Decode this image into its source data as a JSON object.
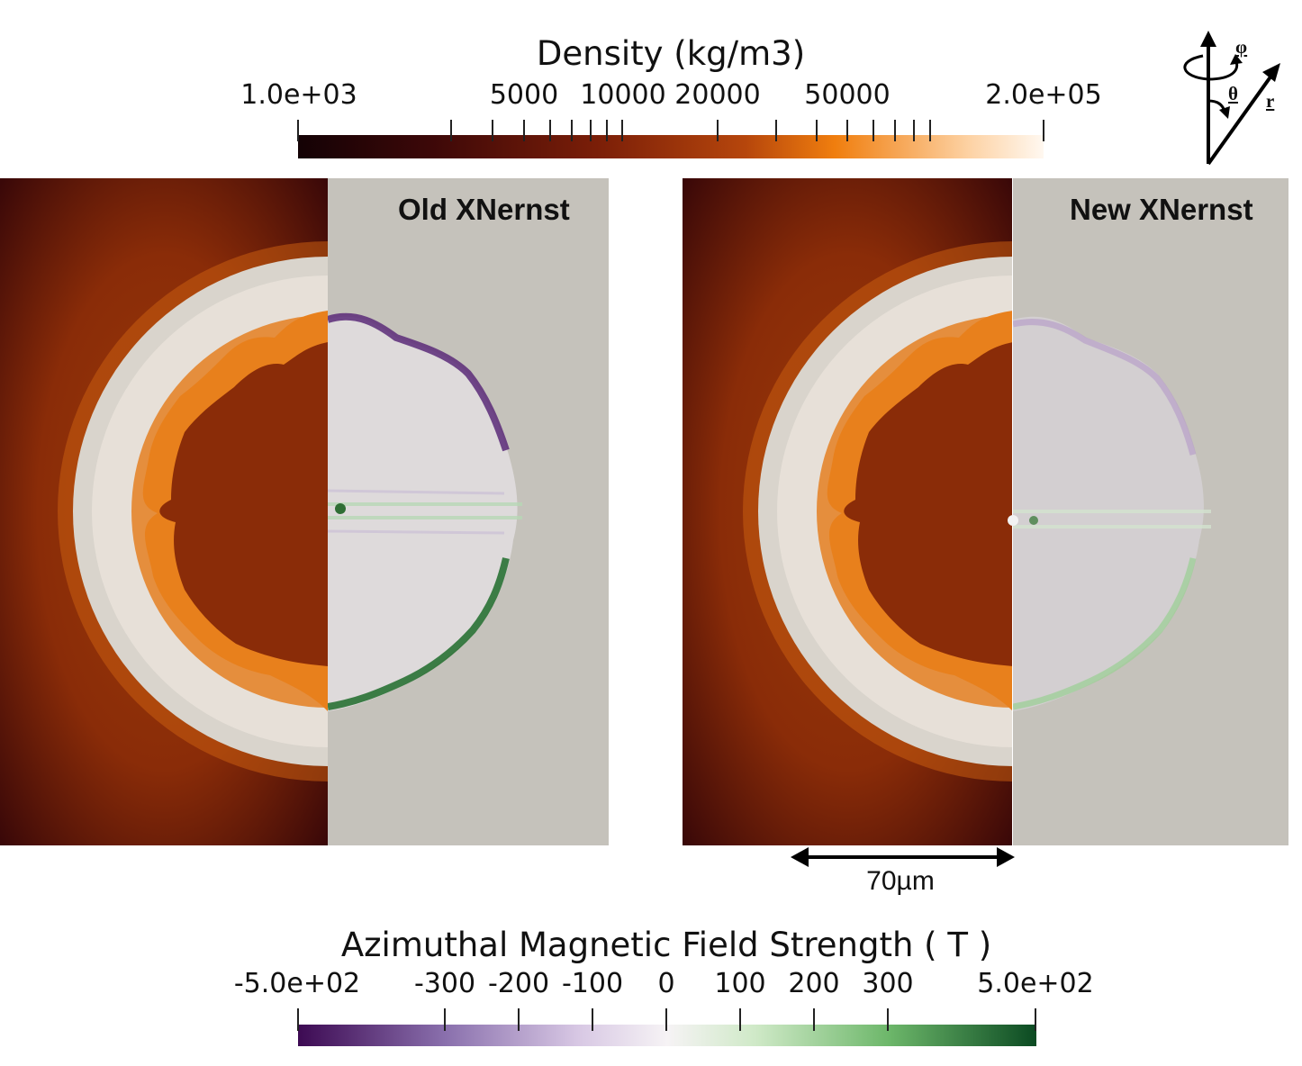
{
  "density_colorbar": {
    "title": "Density (kg/m3)",
    "tick_labels": [
      "1.0e+03",
      "5000",
      "10000",
      "20000",
      "50000",
      "2.0e+05"
    ],
    "colors": [
      "#140205",
      "#3d0808",
      "#7a1e08",
      "#b6460c",
      "#f07e0e",
      "#fdd2a4",
      "#fff8f0"
    ]
  },
  "bfield_colorbar": {
    "title": "Azimuthal Magnetic Field Strength ( T )",
    "tick_labels": [
      "-5.0e+02",
      "-300",
      "-200",
      "-100",
      "0",
      "100",
      "200",
      "300",
      "5.0e+02"
    ],
    "colors": [
      "#3d0a53",
      "#8a70ad",
      "#d8c8e4",
      "#f6f3f5",
      "#cfe9c7",
      "#6db76a",
      "#0b4a22"
    ]
  },
  "panels": {
    "left_label": "Old XNernst",
    "right_label": "New XNernst"
  },
  "scale_bar": {
    "label": "70µm"
  },
  "axes_icon": {
    "phi": "φ",
    "theta": "θ",
    "r": "r"
  }
}
